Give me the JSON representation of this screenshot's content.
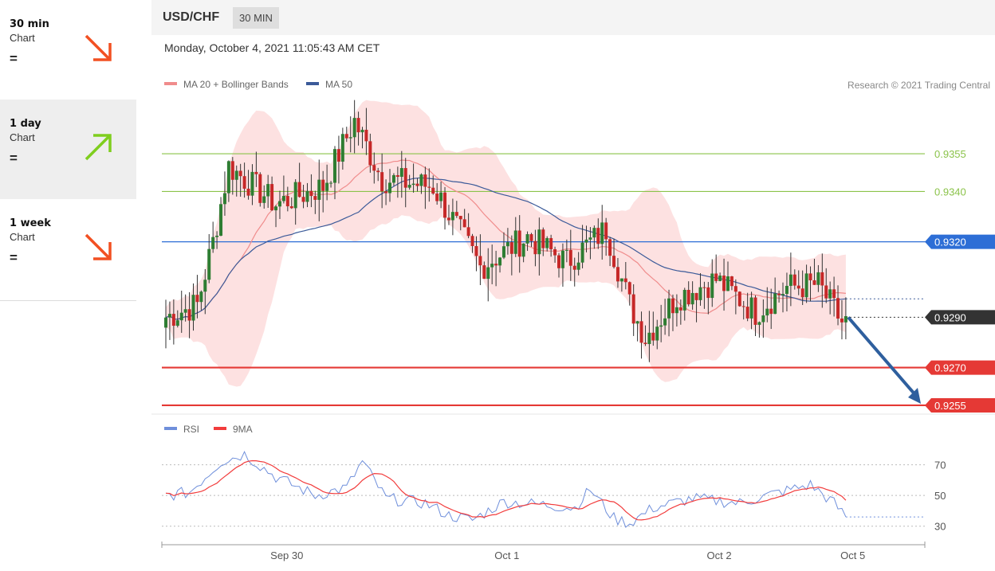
{
  "sidebar": {
    "items": [
      {
        "label": "30 min",
        "sub": "Chart",
        "status": "=",
        "direction": "down",
        "color": "#f25022"
      },
      {
        "label": "1 day",
        "sub": "Chart",
        "status": "=",
        "direction": "up",
        "color": "#7fce1e"
      },
      {
        "label": "1 week",
        "sub": "Chart",
        "status": "=",
        "direction": "down",
        "color": "#f25022"
      }
    ]
  },
  "header": {
    "symbol": "USD/CHF",
    "timeframe": "30 MIN"
  },
  "timestamp": "Monday, October 4, 2021 11:05:43 AM CET",
  "copyright": "Research © 2021 Trading Central",
  "chart_data": [
    {
      "type": "candlestick",
      "legend": [
        {
          "name": "MA 20 + Bollinger Bands",
          "color": "#f08c8c"
        },
        {
          "name": "MA 50",
          "color": "#3b5a99"
        }
      ],
      "ylim": [
        0.92515,
        0.93718
      ],
      "levels": [
        {
          "value": 0.9355,
          "label": "0.9355",
          "color": "#8bc34a",
          "role": "resistance"
        },
        {
          "value": 0.934,
          "label": "0.9340",
          "color": "#8bc34a",
          "role": "resistance"
        },
        {
          "value": 0.932,
          "label": "0.9320",
          "color": "#2d6ed6",
          "role": "pivot",
          "box": true
        },
        {
          "value": 0.929,
          "label": "0.9290",
          "color": "#333333",
          "role": "last",
          "box": true
        },
        {
          "value": 0.927,
          "label": "0.9270",
          "color": "#e53935",
          "role": "support",
          "box": true
        },
        {
          "value": 0.9255,
          "label": "0.9255",
          "color": "#e53935",
          "role": "support",
          "box": true
        }
      ],
      "forecast_arrow": {
        "from_value": 0.929,
        "to_value": 0.9255,
        "color": "#2e5f9e"
      },
      "x_ticks": [
        "Sep 30",
        "Oct 1",
        "Oct 2",
        "Oct 5"
      ],
      "key_points": [
        {
          "t": 0,
          "price": 0.929
        },
        {
          "t": 8,
          "price": 0.9295
        },
        {
          "t": 12,
          "price": 0.932
        },
        {
          "t": 16,
          "price": 0.935
        },
        {
          "t": 28,
          "price": 0.9335
        },
        {
          "t": 40,
          "price": 0.9342
        },
        {
          "t": 48,
          "price": 0.9368
        },
        {
          "t": 55,
          "price": 0.9345
        },
        {
          "t": 68,
          "price": 0.9342
        },
        {
          "t": 80,
          "price": 0.931
        },
        {
          "t": 92,
          "price": 0.9322
        },
        {
          "t": 102,
          "price": 0.9312
        },
        {
          "t": 112,
          "price": 0.9325
        },
        {
          "t": 118,
          "price": 0.9295
        },
        {
          "t": 122,
          "price": 0.9282
        },
        {
          "t": 130,
          "price": 0.9298
        },
        {
          "t": 140,
          "price": 0.9305
        },
        {
          "t": 150,
          "price": 0.9292
        },
        {
          "t": 158,
          "price": 0.9302
        },
        {
          "t": 166,
          "price": 0.9303
        },
        {
          "t": 172,
          "price": 0.9288
        }
      ]
    },
    {
      "type": "line",
      "series": [
        {
          "name": "RSI",
          "color": "#6f8fdb"
        },
        {
          "name": "9MA",
          "color": "#f23c3c"
        }
      ],
      "ylim": [
        20,
        90
      ],
      "y_ticks": [
        70,
        50,
        30
      ],
      "last_value": 36,
      "key_points": [
        {
          "t": 0,
          "rsi": 50
        },
        {
          "t": 6,
          "rsi": 52
        },
        {
          "t": 14,
          "rsi": 72
        },
        {
          "t": 20,
          "rsi": 77
        },
        {
          "t": 28,
          "rsi": 62
        },
        {
          "t": 38,
          "rsi": 50
        },
        {
          "t": 46,
          "rsi": 55
        },
        {
          "t": 50,
          "rsi": 72
        },
        {
          "t": 56,
          "rsi": 48
        },
        {
          "t": 66,
          "rsi": 45
        },
        {
          "t": 72,
          "rsi": 37
        },
        {
          "t": 78,
          "rsi": 34
        },
        {
          "t": 86,
          "rsi": 46
        },
        {
          "t": 96,
          "rsi": 44
        },
        {
          "t": 104,
          "rsi": 42
        },
        {
          "t": 108,
          "rsi": 54
        },
        {
          "t": 114,
          "rsi": 35
        },
        {
          "t": 118,
          "rsi": 32
        },
        {
          "t": 124,
          "rsi": 42
        },
        {
          "t": 134,
          "rsi": 48
        },
        {
          "t": 146,
          "rsi": 45
        },
        {
          "t": 156,
          "rsi": 52
        },
        {
          "t": 164,
          "rsi": 57
        },
        {
          "t": 170,
          "rsi": 45
        },
        {
          "t": 173,
          "rsi": 36
        }
      ]
    }
  ]
}
